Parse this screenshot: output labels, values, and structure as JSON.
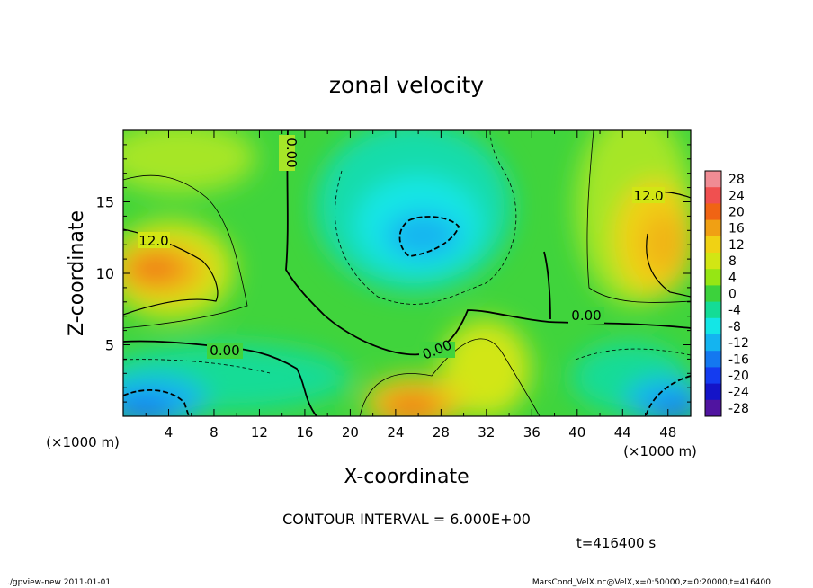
{
  "chart_data": {
    "type": "heatmap",
    "title": "zonal velocity",
    "xlabel": "X-coordinate",
    "ylabel": "Z-coordinate",
    "x_unit": "(×1000 m)",
    "z_unit": "(×1000 m)",
    "xlim": [
      0,
      50
    ],
    "ylim": [
      0,
      20
    ],
    "x_ticks": [
      "4",
      "8",
      "12",
      "16",
      "20",
      "24",
      "28",
      "32",
      "36",
      "40",
      "44",
      "48"
    ],
    "y_ticks": [
      "5",
      "10",
      "15"
    ],
    "colorbar": {
      "labels": [
        "28",
        "24",
        "20",
        "16",
        "12",
        "8",
        "4",
        "0",
        "-4",
        "-8",
        "-12",
        "-16",
        "-20",
        "-24",
        "-28"
      ],
      "colors": [
        "#f08c94",
        "#f05050",
        "#f06414",
        "#f0a014",
        "#f0d214",
        "#d2e614",
        "#96e614",
        "#3cd23c",
        "#14dc96",
        "#14e6e6",
        "#14b4f0",
        "#1478f0",
        "#143cf0",
        "#1414c8",
        "#5014a0"
      ]
    },
    "contour_labels": [
      {
        "text": "12.0"
      },
      {
        "text": "12.0"
      },
      {
        "text": "0.00"
      },
      {
        "text": "0.00"
      },
      {
        "text": "0.00"
      },
      {
        "text": "0.00"
      }
    ],
    "contour_interval": "CONTOUR INTERVAL = 6.000E+00",
    "time_label": "t=416400 s",
    "footer_left": "./gpview-new  2011-01-01",
    "footer_right": "MarsCond_VelX.nc@VelX,x=0:50000,z=0:20000,t=416400"
  }
}
